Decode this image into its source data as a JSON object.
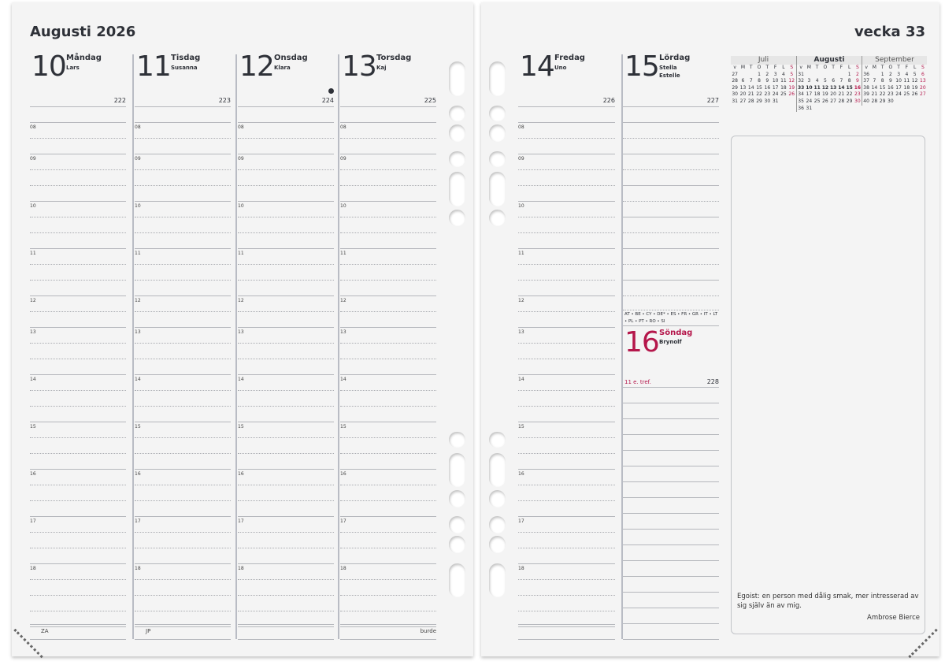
{
  "left_page": {
    "title": "Augusti 2026",
    "days": [
      {
        "num": "10",
        "name": "Måndag",
        "namedays": [
          "Lars"
        ],
        "doy": "222",
        "footer": "ZA"
      },
      {
        "num": "11",
        "name": "Tisdag",
        "namedays": [
          "Susanna"
        ],
        "doy": "223",
        "footer": "JP"
      },
      {
        "num": "12",
        "name": "Onsdag",
        "namedays": [
          "Klara"
        ],
        "doy": "224",
        "footer": "",
        "dot": true
      },
      {
        "num": "13",
        "name": "Torsdag",
        "namedays": [
          "Kaj"
        ],
        "doy": "225",
        "footer": "burde"
      }
    ]
  },
  "hours": [
    "08",
    "09",
    "10",
    "11",
    "12",
    "13",
    "14",
    "15",
    "16",
    "17",
    "18"
  ],
  "right_page": {
    "title": "vecka 33",
    "days": [
      {
        "num": "14",
        "name": "Fredag",
        "namedays": [
          "Uno"
        ],
        "doy": "226"
      },
      {
        "num": "15",
        "name": "Lördag",
        "namedays": [
          "Stella",
          "Estelle"
        ],
        "doy": "227"
      }
    ],
    "sunday": {
      "holiday_countries": "AT • BE • CY • DE* • ES • FR • GR • IT • LT • PL • PT • RO • SI",
      "num": "16",
      "name": "Söndag",
      "namedays": [
        "Brynolf"
      ],
      "sunday_label": "11 e. tref.",
      "doy": "228"
    },
    "mini_calendar": {
      "weekday_header": [
        "v",
        "M",
        "T",
        "O",
        "T",
        "F",
        "L",
        "S"
      ],
      "months": [
        {
          "name": "Juli",
          "weeks": [
            [
              "27",
              "",
              "",
              "1",
              "2",
              "3",
              "4",
              "5"
            ],
            [
              "28",
              "6",
              "7",
              "8",
              "9",
              "10",
              "11",
              "12"
            ],
            [
              "29",
              "13",
              "14",
              "15",
              "16",
              "17",
              "18",
              "19"
            ],
            [
              "30",
              "20",
              "21",
              "22",
              "23",
              "24",
              "25",
              "26"
            ],
            [
              "31",
              "27",
              "28",
              "29",
              "30",
              "31",
              "",
              ""
            ]
          ]
        },
        {
          "name": "Augusti",
          "current_week": "33",
          "weeks": [
            [
              "31",
              "",
              "",
              "",
              "",
              "",
              "1",
              "2"
            ],
            [
              "32",
              "3",
              "4",
              "5",
              "6",
              "7",
              "8",
              "9"
            ],
            [
              "33",
              "10",
              "11",
              "12",
              "13",
              "14",
              "15",
              "16"
            ],
            [
              "34",
              "17",
              "18",
              "19",
              "20",
              "21",
              "22",
              "23"
            ],
            [
              "35",
              "24",
              "25",
              "26",
              "27",
              "28",
              "29",
              "30"
            ],
            [
              "36",
              "31",
              "",
              "",
              "",
              "",
              "",
              ""
            ]
          ]
        },
        {
          "name": "September",
          "weeks": [
            [
              "36",
              "",
              "1",
              "2",
              "3",
              "4",
              "5",
              "6"
            ],
            [
              "37",
              "7",
              "8",
              "9",
              "10",
              "11",
              "12",
              "13"
            ],
            [
              "38",
              "14",
              "15",
              "16",
              "17",
              "18",
              "19",
              "20"
            ],
            [
              "39",
              "21",
              "22",
              "23",
              "24",
              "25",
              "26",
              "27"
            ],
            [
              "40",
              "28",
              "29",
              "30",
              "",
              "",
              "",
              ""
            ]
          ]
        }
      ]
    },
    "quote": {
      "text": "Egoist: en person med dålig smak, mer intresserad av sig själv än av mig.",
      "author": "Ambrose Bierce"
    }
  },
  "colors": {
    "sunday_red": "#b5174b",
    "text": "#2e3138"
  }
}
